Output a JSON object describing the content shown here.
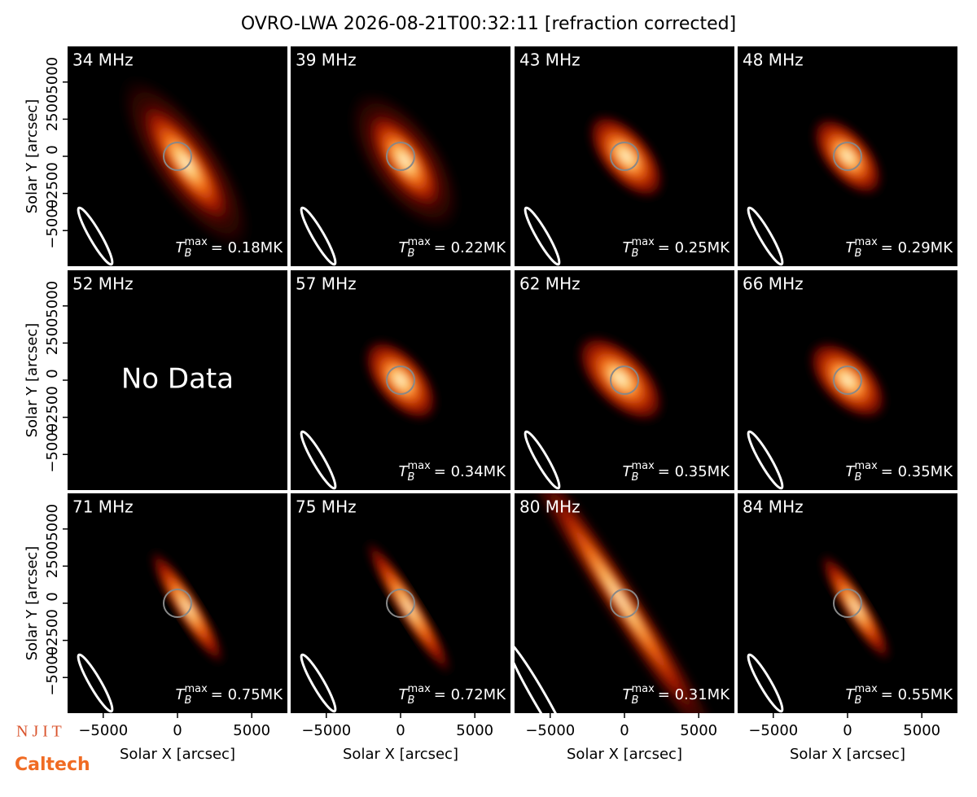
{
  "chart_data": {
    "type": "image-grid",
    "title": "OVRO-LWA 2026-08-21T00:32:11 [refraction corrected]",
    "xlabel": "Solar X [arcsec]",
    "ylabel": "Solar Y [arcsec]",
    "xlim": [
      -7400,
      7400
    ],
    "ylim": [
      -7400,
      7400
    ],
    "xticks": [
      {
        "value": -5000,
        "label": "−5000"
      },
      0,
      5000
    ],
    "yticks": [
      {
        "value": -5000,
        "label": "−5000"
      },
      {
        "value": -2500,
        "label": "−2500"
      },
      0,
      2500,
      5000
    ],
    "tmax_symbol": "T",
    "tmax_sub": "B",
    "tmax_sup": "max",
    "panels": [
      {
        "label": "34 MHz",
        "tmax": "= 0.18MK"
      },
      {
        "label": "39 MHz",
        "tmax": "= 0.22MK"
      },
      {
        "label": "43 MHz",
        "tmax": "= 0.25MK"
      },
      {
        "label": "48 MHz",
        "tmax": "= 0.29MK"
      },
      {
        "label": "52 MHz",
        "note": "No Data"
      },
      {
        "label": "57 MHz",
        "tmax": "= 0.34MK"
      },
      {
        "label": "62 MHz",
        "tmax": "= 0.35MK"
      },
      {
        "label": "66 MHz",
        "tmax": "= 0.35MK"
      },
      {
        "label": "71 MHz",
        "tmax": "= 0.75MK"
      },
      {
        "label": "75 MHz",
        "tmax": "= 0.72MK"
      },
      {
        "label": "80 MHz",
        "tmax": "= 0.31MK"
      },
      {
        "label": "84 MHz",
        "tmax": "= 0.55MK"
      }
    ],
    "logos": [
      "N J I T",
      "Caltech"
    ]
  }
}
